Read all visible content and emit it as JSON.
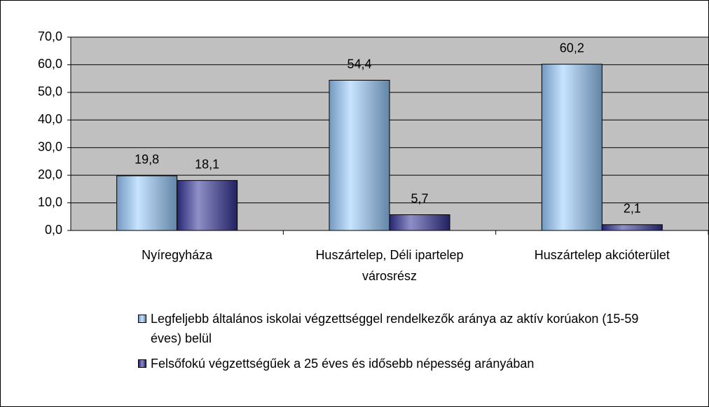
{
  "chart_data": {
    "type": "bar",
    "categories": [
      "Nyíregyháza",
      "Huszártelep, Déli ipartelep városrész",
      "Huszártelep akcióterület"
    ],
    "series": [
      {
        "name": "Legfeljebb általános iskolai végzettséggel rendelkezők aránya az aktív korúakon (15-59 éves) belül",
        "color": "#99ccff",
        "values": [
          19.8,
          54.4,
          60.2
        ],
        "value_labels": [
          "19,8",
          "54,4",
          "60,2"
        ]
      },
      {
        "name": "Felsőfokú végzettségűek a 25 éves és idősebb népesség arányában",
        "color": "#333399",
        "values": [
          18.1,
          5.7,
          2.1
        ],
        "value_labels": [
          "18,1",
          "5,7",
          "2,1"
        ]
      }
    ],
    "ylim": [
      0,
      70
    ],
    "yticks": [
      {
        "value": 0,
        "label": "0,0"
      },
      {
        "value": 10,
        "label": "10,0"
      },
      {
        "value": 20,
        "label": "20,0"
      },
      {
        "value": 30,
        "label": "30,0"
      },
      {
        "value": 40,
        "label": "40,0"
      },
      {
        "value": 50,
        "label": "50,0"
      },
      {
        "value": 60,
        "label": "60,0"
      },
      {
        "value": 70,
        "label": "70,0"
      }
    ],
    "grid": true,
    "legend": "bottom",
    "plot_background": "#c0c0c0"
  }
}
